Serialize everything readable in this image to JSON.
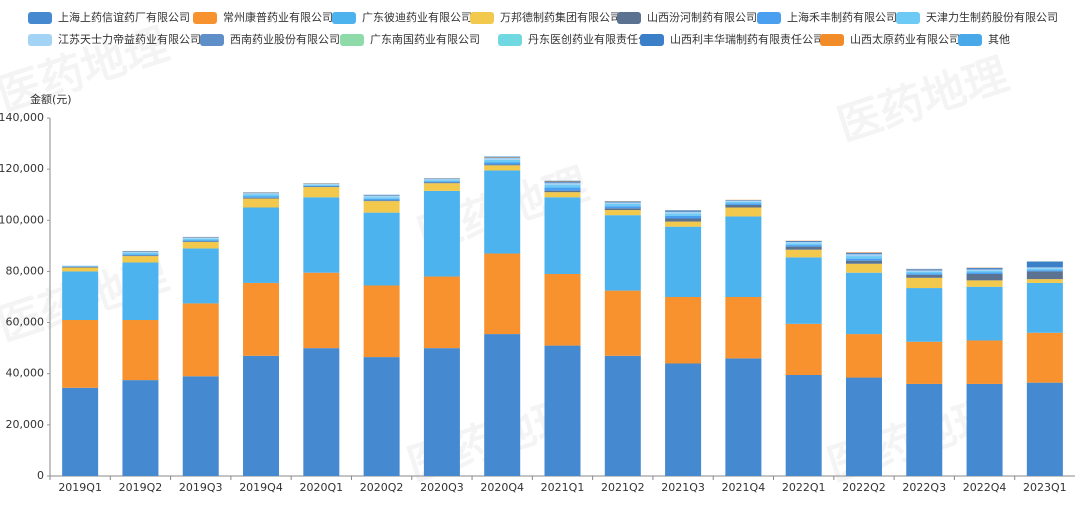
{
  "chart_data": {
    "type": "stacked_bar",
    "watermark": "医药地理",
    "y_label": "金额(元)",
    "categories": [
      "2019Q1",
      "2019Q2",
      "2019Q3",
      "2019Q4",
      "2020Q1",
      "2020Q2",
      "2020Q3",
      "2020Q4",
      "2021Q1",
      "2021Q2",
      "2021Q3",
      "2021Q4",
      "2022Q1",
      "2022Q2",
      "2022Q3",
      "2022Q4",
      "2023Q1"
    ],
    "ylim": [
      0,
      140000
    ],
    "yticks": [
      0,
      {
        "value": 20000,
        "label": "20,000"
      },
      {
        "value": 40000,
        "label": "40,000"
      },
      {
        "value": 60000,
        "label": "60,000"
      },
      {
        "value": 80000,
        "label": "80,000"
      },
      {
        "value": 100000,
        "label": "100,000"
      },
      {
        "value": 120000,
        "label": "120,000"
      },
      {
        "value": 140000,
        "label": "140,000"
      }
    ],
    "series": [
      {
        "name": "上海上药信谊药厂有限公司",
        "color": "#4589d0",
        "values": [
          34500,
          37500,
          39000,
          47000,
          50000,
          46500,
          50000,
          55500,
          51000,
          47000,
          44000,
          46000,
          39500,
          38500,
          36000,
          36000,
          36500
        ]
      },
      {
        "name": "常州康普药业有限公司",
        "color": "#f7922e",
        "values": [
          26500,
          23500,
          28500,
          28500,
          29500,
          28000,
          28000,
          31500,
          28000,
          25500,
          26000,
          24000,
          20000,
          17000,
          16500,
          17000,
          19500
        ]
      },
      {
        "name": "广东彼迪药业有限公司",
        "color": "#4db3ee",
        "values": [
          19000,
          22500,
          21500,
          29500,
          29500,
          28500,
          33500,
          32500,
          30000,
          29500,
          27500,
          31500,
          26000,
          24000,
          21000,
          21000,
          19500
        ]
      },
      {
        "name": "万邦德制药集团有限公司",
        "color": "#f2c94c",
        "values": [
          1500,
          2500,
          2500,
          3500,
          4000,
          4500,
          3000,
          2000,
          2000,
          2000,
          2000,
          3500,
          3000,
          3500,
          4000,
          2500,
          1500
        ]
      },
      {
        "name": "山西汾河制药有限公司",
        "color": "#5b7390",
        "values": [
          300,
          300,
          300,
          300,
          200,
          300,
          300,
          300,
          600,
          700,
          1200,
          1000,
          1200,
          1200,
          1200,
          2500,
          3000
        ]
      },
      {
        "name": "上海禾丰制药有限公司",
        "color": "#4a9ff0",
        "values": [
          200,
          300,
          300,
          500,
          300,
          500,
          400,
          800,
          1200,
          800,
          1000,
          600,
          600,
          800,
          500,
          600,
          500
        ]
      },
      {
        "name": "天津力生制药股份有限公司",
        "color": "#6ccaf5",
        "values": [
          200,
          600,
          600,
          800,
          400,
          700,
          500,
          1000,
          1000,
          900,
          900,
          600,
          700,
          1000,
          600,
          600,
          600
        ]
      },
      {
        "name": "江苏天士力帝益药业有限公司",
        "color": "#a3d4f5",
        "values": [
          100,
          400,
          400,
          500,
          300,
          500,
          400,
          700,
          700,
          500,
          600,
          400,
          500,
          700,
          500,
          500,
          400
        ]
      },
      {
        "name": "西南药业股份有限公司",
        "color": "#5e8fc9",
        "values": [
          0,
          200,
          200,
          200,
          100,
          200,
          200,
          300,
          400,
          300,
          300,
          200,
          200,
          300,
          200,
          300,
          200
        ]
      },
      {
        "name": "广东南国药业有限公司",
        "color": "#8fdba7",
        "values": [
          0,
          0,
          0,
          0,
          0,
          0,
          0,
          0,
          0,
          0,
          0,
          0,
          0,
          0,
          0,
          0,
          0
        ]
      },
      {
        "name": "丹东医创药业有限责任公司",
        "color": "#6fd8e0",
        "values": [
          0,
          0,
          0,
          0,
          0,
          0,
          0,
          0,
          0,
          0,
          0,
          0,
          0,
          0,
          0,
          0,
          0
        ]
      },
      {
        "name": "山西利丰华瑞制药有限责任公司",
        "color": "#3a7fc8",
        "values": [
          0,
          0,
          0,
          0,
          0,
          0,
          0,
          0,
          300,
          200,
          300,
          100,
          200,
          300,
          300,
          400,
          2000
        ]
      },
      {
        "name": "山西太原药业有限公司",
        "color": "#f28c28",
        "values": [
          0,
          100,
          100,
          100,
          100,
          100,
          100,
          200,
          200,
          100,
          100,
          100,
          100,
          200,
          100,
          100,
          100
        ]
      },
      {
        "name": "其他",
        "color": "#49a8e8",
        "values": [
          0,
          100,
          100,
          100,
          100,
          200,
          100,
          200,
          100,
          0,
          100,
          0,
          0,
          0,
          100,
          0,
          200
        ]
      }
    ]
  }
}
